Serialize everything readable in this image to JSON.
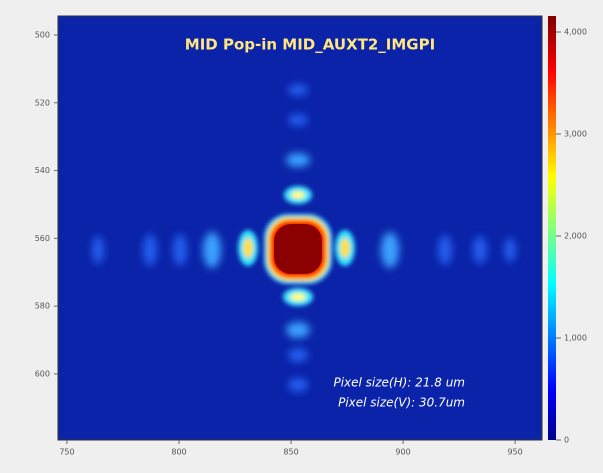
{
  "chart_data": {
    "type": "image",
    "title": "MID Pop-in MID_AUXT2_IMGPI",
    "annotations": [
      "Pixel size(H): 21.8 um",
      "Pixel size(V): 30.7um"
    ],
    "xlim": [
      746,
      962
    ],
    "xticks": [
      750,
      800,
      850,
      900,
      950
    ],
    "ylim": [
      494.4,
      619.5
    ],
    "yticks": [
      500,
      520,
      540,
      560,
      580,
      600
    ],
    "y_inverted": true,
    "clim": [
      0,
      4157
    ],
    "cticks": [
      0,
      {
        "value": 1000,
        "label": "1,000"
      },
      {
        "value": 2000,
        "label": "2,000"
      },
      {
        "value": 3000,
        "label": "3,000"
      },
      {
        "value": 4000,
        "label": "4,000"
      }
    ],
    "colormap": "jet"
  }
}
